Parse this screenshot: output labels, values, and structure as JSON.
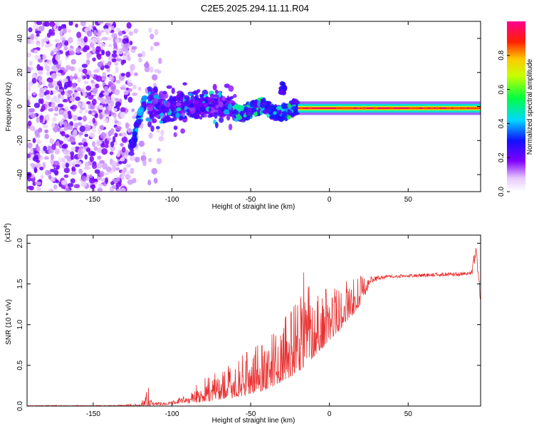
{
  "figure_title": "C2E5.2025.294.11.11.R04",
  "chart_data": [
    {
      "type": "heatmap",
      "name": "spectrogram",
      "xlabel": "Height of straight line (km)",
      "ylabel": "Frequency (Hz)",
      "xlim": [
        -192,
        96
      ],
      "ylim": [
        -50,
        50
      ],
      "xticks": [
        -150,
        -100,
        -50,
        0,
        50
      ],
      "yticks": [
        -40,
        -20,
        0,
        20,
        40
      ],
      "colorbar": {
        "label": "Normalized spectral amplitude",
        "range": [
          0,
          1
        ],
        "ticks": [
          "0.0",
          "0.2",
          "0.4",
          "0.6",
          "0.8"
        ],
        "tick_values": [
          0,
          0.2,
          0.4,
          0.6,
          0.8
        ]
      },
      "regions": [
        {
          "name": "diffuse noise",
          "x": [
            -192,
            -126
          ],
          "freq_spread": 50,
          "amplitude": 0.15
        },
        {
          "name": "onset streak",
          "x": [
            -126,
            -117
          ],
          "freq": [
            -25,
            5
          ],
          "amplitude": 0.3
        },
        {
          "name": "broadband echo",
          "x": [
            -115,
            -60
          ],
          "freq_center": 0,
          "freq_spread": 10,
          "amplitude": 0.2
        },
        {
          "name": "narrowing echo",
          "x": [
            -60,
            -20
          ],
          "freq_center": -2,
          "freq_spread": 4,
          "amplitude": 0.3
        },
        {
          "name": "steady tone",
          "x": [
            -20,
            96
          ],
          "freq_center": -1,
          "freq_spread": 1,
          "amplitude": 0.95
        }
      ]
    },
    {
      "type": "line",
      "name": "snr",
      "xlabel": "Height of straight line (km)",
      "ylabel": "SNR (10 * v/v)",
      "y_multiplier_label": "(x10",
      "y_multiplier_exponent": "4",
      "y_multiplier_close": ")",
      "xlim": [
        -192,
        96
      ],
      "ylim": [
        0,
        2.1
      ],
      "xticks": [
        -150,
        -100,
        -50,
        0,
        50
      ],
      "yticks": [
        0.0,
        0.5,
        1.0,
        1.5,
        2.0
      ],
      "ytick_labels": [
        "0.0",
        "0.5",
        "1.0",
        "1.5",
        "2.0"
      ],
      "color": "#e83030",
      "envelope": [
        {
          "x": -192,
          "y": 0.01
        },
        {
          "x": -140,
          "y": 0.01
        },
        {
          "x": -120,
          "y": 0.03
        },
        {
          "x": -115,
          "y": 0.28
        },
        {
          "x": -112,
          "y": 0.05
        },
        {
          "x": -100,
          "y": 0.06
        },
        {
          "x": -90,
          "y": 0.15
        },
        {
          "x": -80,
          "y": 0.35
        },
        {
          "x": -70,
          "y": 0.45
        },
        {
          "x": -60,
          "y": 0.55
        },
        {
          "x": -50,
          "y": 0.7
        },
        {
          "x": -40,
          "y": 0.85
        },
        {
          "x": -30,
          "y": 1.0
        },
        {
          "x": -20,
          "y": 1.45
        },
        {
          "x": -17,
          "y": 1.72
        },
        {
          "x": -10,
          "y": 1.4
        },
        {
          "x": 0,
          "y": 1.5
        },
        {
          "x": 10,
          "y": 1.55
        },
        {
          "x": 20,
          "y": 1.6
        },
        {
          "x": 30,
          "y": 1.6
        },
        {
          "x": 50,
          "y": 1.62
        },
        {
          "x": 70,
          "y": 1.64
        },
        {
          "x": 90,
          "y": 1.65
        },
        {
          "x": 93,
          "y": 2.05
        },
        {
          "x": 96,
          "y": 1.2
        }
      ],
      "baseline": [
        {
          "x": -192,
          "y": 0.0
        },
        {
          "x": -120,
          "y": 0.0
        },
        {
          "x": -100,
          "y": 0.02
        },
        {
          "x": -80,
          "y": 0.05
        },
        {
          "x": -60,
          "y": 0.1
        },
        {
          "x": -40,
          "y": 0.2
        },
        {
          "x": -30,
          "y": 0.3
        },
        {
          "x": -20,
          "y": 0.4
        },
        {
          "x": -10,
          "y": 0.6
        },
        {
          "x": 0,
          "y": 0.8
        },
        {
          "x": 10,
          "y": 1.0
        },
        {
          "x": 20,
          "y": 1.25
        },
        {
          "x": 25,
          "y": 1.45
        },
        {
          "x": 35,
          "y": 1.55
        },
        {
          "x": 50,
          "y": 1.56
        },
        {
          "x": 70,
          "y": 1.57
        },
        {
          "x": 96,
          "y": 1.58
        }
      ]
    }
  ]
}
